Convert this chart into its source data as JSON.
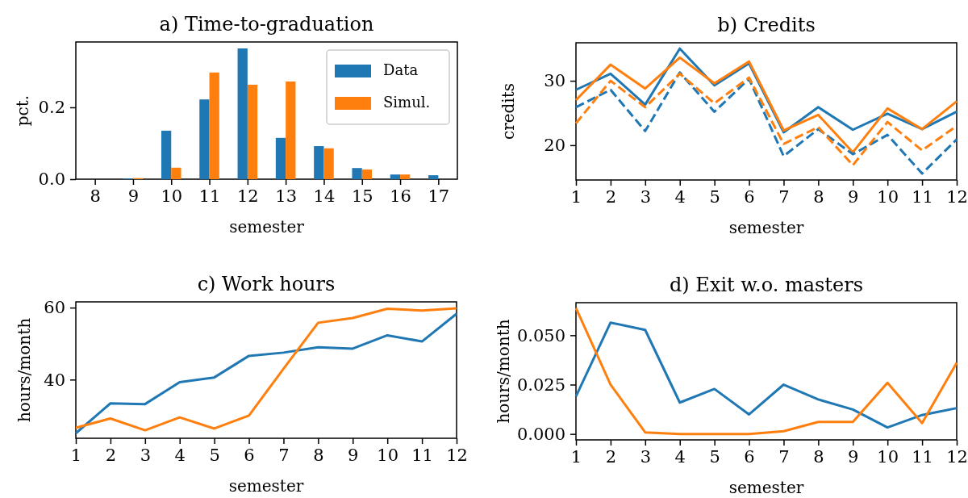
{
  "chart_data": [
    {
      "type": "bar",
      "title": "a) Time-to-graduation",
      "xlabel": "semester",
      "ylabel": "pct.",
      "categories": [
        "8",
        "9",
        "10",
        "11",
        "12",
        "13",
        "14",
        "15",
        "16",
        "17"
      ],
      "ylim": [
        0,
        0.382
      ],
      "yticks": [
        {
          "value": 0,
          "label": "0.0"
        },
        {
          "value": 0.2,
          "label": "0.2"
        }
      ],
      "legend": "top right",
      "grid": false,
      "series": [
        {
          "name": "Data",
          "color": "#1f77b4",
          "values": [
            0,
            0.002,
            0.135,
            0.222,
            0.364,
            0.115,
            0.092,
            0.031,
            0.013,
            0.011
          ]
        },
        {
          "name": "Simul.",
          "color": "#ff7f0e",
          "values": [
            0,
            0.003,
            0.032,
            0.297,
            0.263,
            0.272,
            0.086,
            0.027,
            0.013,
            0
          ]
        }
      ]
    },
    {
      "type": "line",
      "title": "b) Credits",
      "xlabel": "semester",
      "ylabel": "credits",
      "x": [
        1,
        2,
        3,
        4,
        5,
        6,
        7,
        8,
        9,
        10,
        11,
        12
      ],
      "xlim": [
        1,
        12
      ],
      "xticks": [
        1,
        2,
        3,
        4,
        5,
        6,
        7,
        8,
        9,
        10,
        11,
        12
      ],
      "ylim": [
        14.6,
        35.9
      ],
      "yticks": [
        20,
        30
      ],
      "grid": false,
      "legend": false,
      "series": [
        {
          "color": "#1f77b4",
          "line_style": "solid",
          "values": [
            28.6,
            31.1,
            26.3,
            35.0,
            29.3,
            32.7,
            22.0,
            25.9,
            22.4,
            24.9,
            22.5,
            25.2
          ]
        },
        {
          "color": "#ff7f0e",
          "line_style": "solid",
          "values": [
            27.0,
            32.5,
            28.8,
            33.6,
            29.6,
            33.0,
            22.3,
            24.7,
            18.9,
            25.7,
            22.5,
            26.8
          ]
        },
        {
          "color": "#1f77b4",
          "line_style": "dashed",
          "values": [
            25.9,
            28.6,
            22.2,
            31.3,
            25.2,
            30.3,
            18.3,
            22.5,
            18.6,
            21.6,
            15.6,
            20.9
          ]
        },
        {
          "color": "#ff7f0e",
          "line_style": "dashed",
          "values": [
            23.4,
            30.0,
            25.9,
            31.1,
            26.5,
            30.5,
            20.2,
            22.8,
            16.9,
            23.6,
            19.2,
            23.0
          ]
        }
      ]
    },
    {
      "type": "line",
      "title": "c) Work hours",
      "xlabel": "semester",
      "ylabel": "hours/month",
      "x": [
        1,
        2,
        3,
        4,
        5,
        6,
        7,
        8,
        9,
        10,
        11,
        12
      ],
      "xlim": [
        1,
        12
      ],
      "xticks": [
        1,
        2,
        3,
        4,
        5,
        6,
        7,
        8,
        9,
        10,
        11,
        12
      ],
      "ylim": [
        23.7,
        61.6
      ],
      "yticks": [
        40,
        60
      ],
      "grid": false,
      "legend": false,
      "series": [
        {
          "color": "#1f77b4",
          "values": [
            25.1,
            33.4,
            33.2,
            39.3,
            40.6,
            46.6,
            47.5,
            49.0,
            48.6,
            52.3,
            50.6,
            58.3
          ]
        },
        {
          "color": "#ff7f0e",
          "values": [
            26.6,
            29.2,
            25.9,
            29.5,
            26.4,
            30.0,
            43.0,
            55.8,
            57.1,
            59.7,
            59.2,
            59.8
          ]
        }
      ]
    },
    {
      "type": "line",
      "title": "d) Exit w.o. masters",
      "xlabel": "semester",
      "ylabel": "hours/month",
      "x": [
        1,
        2,
        3,
        4,
        5,
        6,
        7,
        8,
        9,
        10,
        11,
        12
      ],
      "xlim": [
        1,
        12
      ],
      "xticks": [
        1,
        2,
        3,
        4,
        5,
        6,
        7,
        8,
        9,
        10,
        11,
        12
      ],
      "ylim": [
        -0.003,
        0.0665
      ],
      "yticks": [
        {
          "value": 0,
          "label": "0.000"
        },
        {
          "value": 0.025,
          "label": "0.025"
        },
        {
          "value": 0.05,
          "label": "0.050"
        }
      ],
      "grid": false,
      "legend": false,
      "series": [
        {
          "color": "#1f77b4",
          "values": [
            0.019,
            0.0564,
            0.0527,
            0.0159,
            0.0228,
            0.0099,
            0.025,
            0.0175,
            0.0124,
            0.0033,
            0.0096,
            0.0131
          ]
        },
        {
          "color": "#ff7f0e",
          "values": [
            0.0638,
            0.025,
            0.0008,
            0,
            0,
            0,
            0.0014,
            0.0061,
            0.0061,
            0.0259,
            0.0055,
            0.036
          ]
        }
      ]
    }
  ]
}
